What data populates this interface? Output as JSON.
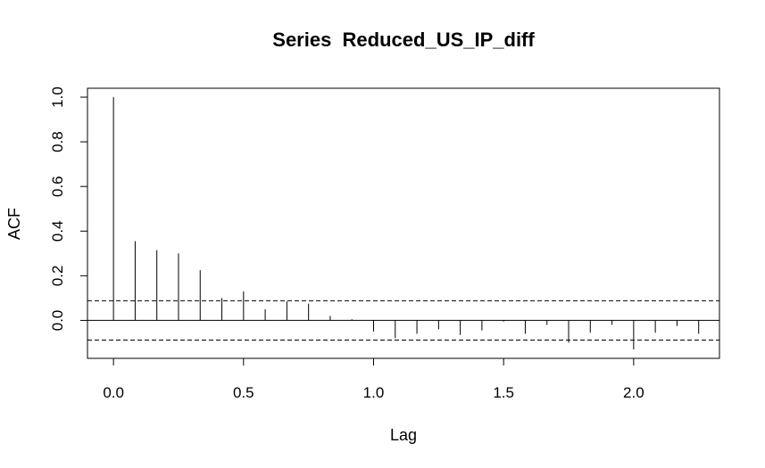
{
  "chart_data": {
    "type": "bar",
    "title": "Series  Reduced_US_IP_diff",
    "xlabel": "Lag",
    "ylabel": "ACF",
    "xlim": [
      -0.1,
      2.33
    ],
    "ylim": [
      -0.17,
      1.04
    ],
    "x_ticks": [
      0.0,
      0.5,
      1.0,
      1.5,
      2.0
    ],
    "x_tick_labels": [
      "0.0",
      "0.5",
      "1.0",
      "1.5",
      "2.0"
    ],
    "y_ticks": [
      0.0,
      0.2,
      0.4,
      0.6,
      0.8,
      1.0
    ],
    "y_tick_labels": [
      "0.0",
      "0.2",
      "0.4",
      "0.6",
      "0.8",
      "1.0"
    ],
    "confidence_bound": 0.088,
    "grid": false,
    "lags": [
      0.0,
      0.0833,
      0.1667,
      0.25,
      0.3333,
      0.4167,
      0.5,
      0.5833,
      0.6667,
      0.75,
      0.8333,
      0.9167,
      1.0,
      1.0833,
      1.1667,
      1.25,
      1.3333,
      1.4167,
      1.5,
      1.5833,
      1.6667,
      1.75,
      1.8333,
      1.9167,
      2.0,
      2.0833,
      2.1667,
      2.25
    ],
    "values": [
      1.0,
      0.355,
      0.315,
      0.3,
      0.225,
      0.1,
      0.13,
      0.05,
      0.085,
      0.075,
      0.02,
      0.005,
      -0.05,
      -0.08,
      -0.06,
      -0.04,
      -0.065,
      -0.045,
      -0.005,
      -0.06,
      -0.02,
      -0.1,
      -0.055,
      -0.02,
      -0.13,
      -0.055,
      -0.025,
      -0.06
    ]
  }
}
